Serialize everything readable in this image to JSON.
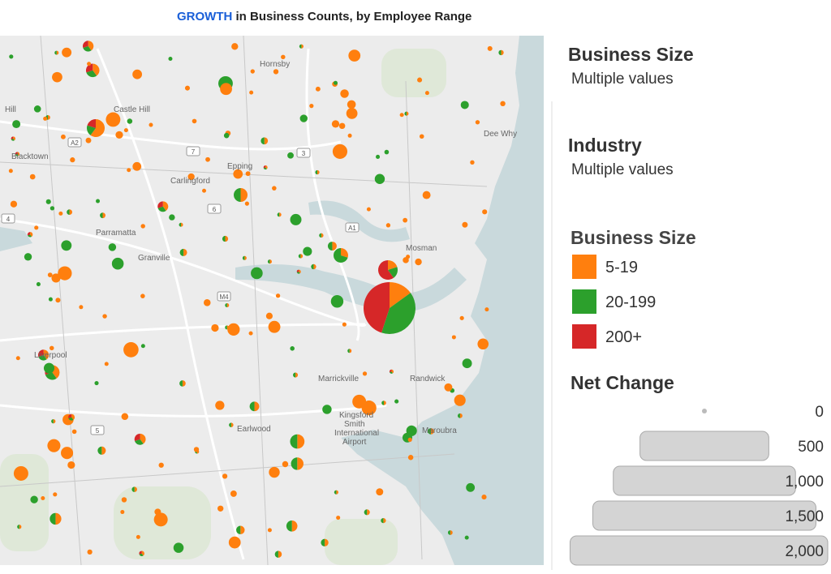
{
  "title": {
    "highlight": "GROWTH",
    "rest": "in Business Counts, by Employee Range"
  },
  "map": {
    "places": [
      "Hornsby",
      "Castle Hill",
      "Hill",
      "Blacktown",
      "Carlingford",
      "Epping",
      "Dee Why",
      "Parramatta",
      "Granville",
      "Mosman",
      "Liverpool",
      "Marrickville",
      "Randwick",
      "Earlwood",
      "Kingsford",
      "Smith",
      "International",
      "Airport",
      "Maroubra"
    ],
    "road_labels": [
      "A2",
      "7",
      "3",
      "4",
      "6",
      "A1",
      "M4",
      "5"
    ]
  },
  "filters": [
    {
      "title": "Business Size",
      "value": "Multiple values"
    },
    {
      "title": "Industry",
      "value": "Multiple values"
    }
  ],
  "legend": {
    "title": "Business Size",
    "items": [
      {
        "label": "5-19",
        "color": "#ff7f0e"
      },
      {
        "label": "20-199",
        "color": "#2ca02c"
      },
      {
        "label": "200+",
        "color": "#d62728"
      }
    ]
  },
  "size_legend": {
    "title": "Net Change",
    "items": [
      0,
      500,
      {
        "value": 1000,
        "label": "1,000"
      },
      {
        "value": 1500,
        "label": "1,500"
      },
      {
        "value": 2000,
        "label": "2,000"
      }
    ]
  }
}
